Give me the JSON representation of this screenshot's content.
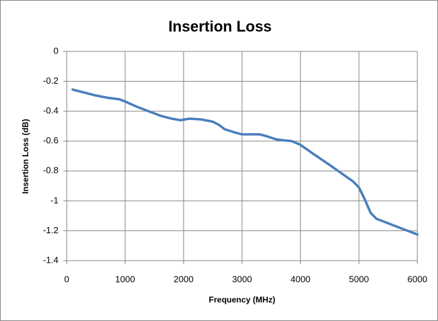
{
  "chart_data": {
    "type": "line",
    "title": "Insertion Loss",
    "x_label": "Frequency (MHz)",
    "y_label": "Insertion Loss (dB)",
    "x": [
      100,
      300,
      500,
      700,
      900,
      1000,
      1200,
      1400,
      1600,
      1800,
      1950,
      2100,
      2300,
      2500,
      2600,
      2700,
      2900,
      3000,
      3300,
      3400,
      3600,
      3850,
      4000,
      4200,
      4500,
      4700,
      4900,
      5000,
      5100,
      5200,
      5300,
      5500,
      5700,
      5900,
      6000
    ],
    "series": [
      {
        "name": "Insertion Loss",
        "color": "#4a7ebb",
        "values": [
          -0.255,
          -0.275,
          -0.295,
          -0.31,
          -0.32,
          -0.335,
          -0.37,
          -0.4,
          -0.43,
          -0.45,
          -0.46,
          -0.45,
          -0.455,
          -0.47,
          -0.49,
          -0.52,
          -0.545,
          -0.555,
          -0.555,
          -0.565,
          -0.59,
          -0.6,
          -0.625,
          -0.68,
          -0.76,
          -0.815,
          -0.87,
          -0.91,
          -0.99,
          -1.08,
          -1.12,
          -1.15,
          -1.18,
          -1.21,
          -1.225
        ]
      }
    ],
    "xlim": [
      0,
      6000
    ],
    "xticks": [
      0,
      1000,
      2000,
      3000,
      4000,
      5000,
      6000
    ],
    "ylim": [
      -1.4,
      0
    ],
    "yticks": [
      0,
      -0.2,
      -0.4,
      -0.6,
      -0.8,
      -1,
      -1.2,
      -1.4
    ],
    "grid": true
  }
}
